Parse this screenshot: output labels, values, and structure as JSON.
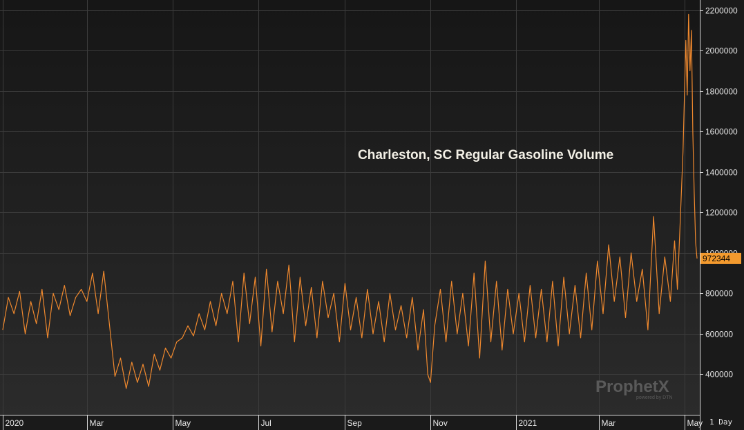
{
  "chart_data": {
    "type": "line",
    "title": "Charleston, SC Regular Gasoline Volume",
    "xlabel": "",
    "ylabel": "",
    "interval": "1 Day",
    "ylim": [
      200000,
      2250000
    ],
    "yticks": [
      400000,
      600000,
      800000,
      1000000,
      1200000,
      1400000,
      1600000,
      1800000,
      2000000,
      2200000
    ],
    "ytick_labels": [
      "400000",
      "600000",
      "800000",
      "1000000",
      "1200000",
      "1400000",
      "1600000",
      "1800000",
      "2000000",
      "2200000"
    ],
    "xlim": [
      0,
      495
    ],
    "xtick_labels": [
      {
        "label": "2020",
        "x": 0
      },
      {
        "label": "Mar",
        "x": 60
      },
      {
        "label": "May",
        "x": 121
      },
      {
        "label": "Jul",
        "x": 182
      },
      {
        "label": "Sep",
        "x": 244
      },
      {
        "label": "Nov",
        "x": 305
      },
      {
        "label": "2021",
        "x": 366
      },
      {
        "label": "Mar",
        "x": 425
      },
      {
        "label": "May",
        "x": 486
      }
    ],
    "last_value": 972344,
    "last_value_label": "972344",
    "series": [
      {
        "name": "Charleston, SC Regular Gasoline Volume",
        "color": "#f0892e",
        "x": [
          0,
          4,
          8,
          12,
          16,
          20,
          24,
          28,
          32,
          36,
          40,
          44,
          48,
          52,
          56,
          60,
          64,
          68,
          72,
          76,
          80,
          84,
          88,
          92,
          96,
          100,
          104,
          108,
          112,
          116,
          120,
          124,
          128,
          132,
          136,
          140,
          144,
          148,
          152,
          156,
          160,
          164,
          168,
          172,
          176,
          180,
          184,
          188,
          192,
          196,
          200,
          204,
          208,
          212,
          216,
          220,
          224,
          228,
          232,
          236,
          240,
          244,
          248,
          252,
          256,
          260,
          264,
          268,
          272,
          276,
          280,
          284,
          288,
          292,
          296,
          300,
          303,
          305,
          308,
          312,
          316,
          320,
          324,
          328,
          332,
          336,
          340,
          344,
          348,
          352,
          356,
          360,
          364,
          368,
          372,
          376,
          380,
          384,
          388,
          392,
          396,
          400,
          404,
          408,
          412,
          416,
          420,
          424,
          428,
          432,
          436,
          440,
          444,
          448,
          452,
          456,
          460,
          464,
          468,
          472,
          476,
          479,
          481,
          483,
          485,
          487,
          488,
          489,
          490,
          491,
          492,
          493,
          494,
          495
        ],
        "values": [
          620000,
          780000,
          700000,
          810000,
          600000,
          760000,
          650000,
          820000,
          580000,
          800000,
          720000,
          840000,
          690000,
          780000,
          820000,
          760000,
          900000,
          700000,
          910000,
          650000,
          390000,
          480000,
          330000,
          460000,
          360000,
          450000,
          340000,
          500000,
          420000,
          530000,
          480000,
          560000,
          580000,
          640000,
          590000,
          700000,
          620000,
          760000,
          640000,
          800000,
          700000,
          860000,
          560000,
          900000,
          650000,
          880000,
          540000,
          920000,
          610000,
          860000,
          700000,
          940000,
          560000,
          880000,
          640000,
          830000,
          580000,
          860000,
          680000,
          800000,
          560000,
          850000,
          620000,
          780000,
          580000,
          820000,
          600000,
          760000,
          560000,
          800000,
          620000,
          740000,
          580000,
          780000,
          520000,
          720000,
          400000,
          360000,
          640000,
          820000,
          560000,
          860000,
          600000,
          800000,
          540000,
          900000,
          480000,
          960000,
          560000,
          860000,
          520000,
          820000,
          600000,
          800000,
          560000,
          840000,
          580000,
          820000,
          560000,
          860000,
          540000,
          880000,
          600000,
          840000,
          580000,
          900000,
          620000,
          960000,
          700000,
          1040000,
          760000,
          980000,
          680000,
          1000000,
          760000,
          920000,
          620000,
          1180000,
          700000,
          980000,
          760000,
          1060000,
          820000,
          1150000,
          1500000,
          2050000,
          1780000,
          2180000,
          1900000,
          2100000,
          1600000,
          1300000,
          1050000,
          972344
        ]
      }
    ]
  },
  "watermark": {
    "main": "ProphetX",
    "sub": "powered by DTN"
  }
}
